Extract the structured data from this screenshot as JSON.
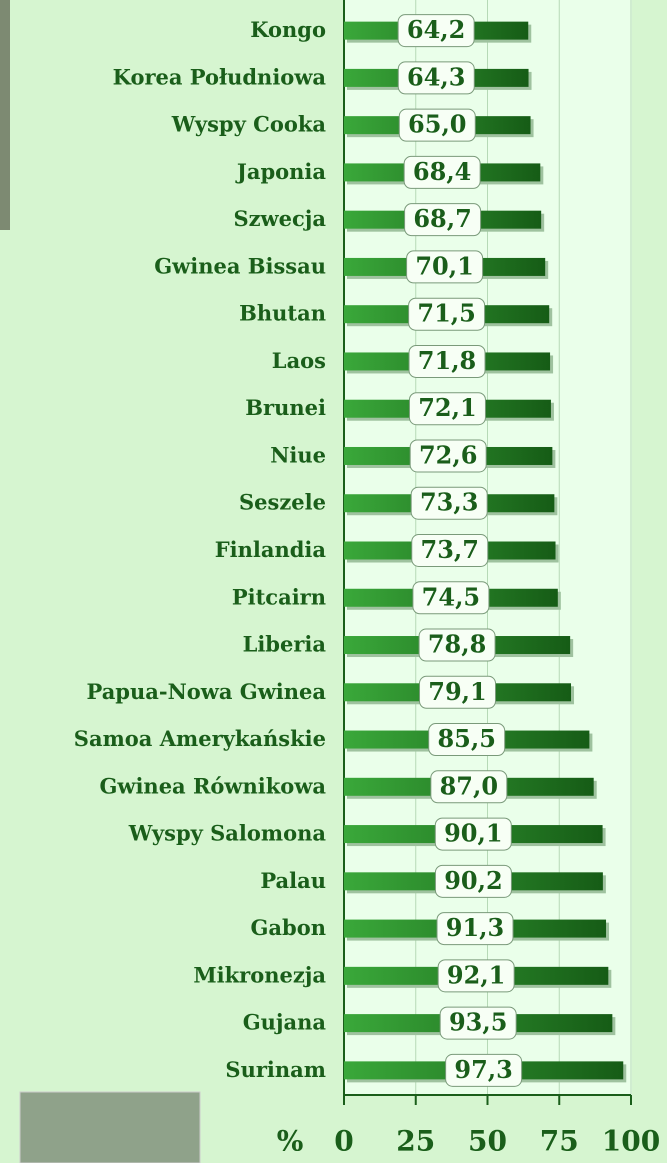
{
  "chart_data": {
    "type": "bar",
    "orientation": "horizontal",
    "categories": [
      "Kongo",
      "Korea Południowa",
      "Wyspy Cooka",
      "Japonia",
      "Szwecja",
      "Gwinea Bissau",
      "Bhutan",
      "Laos",
      "Brunei",
      "Niue",
      "Seszele",
      "Finlandia",
      "Pitcairn",
      "Liberia",
      "Papua-Nowa Gwinea",
      "Samoa Amerykańskie",
      "Gwinea Równikowa",
      "Wyspy Salomona",
      "Palau",
      "Gabon",
      "Mikronezja",
      "Gujana",
      "Surinam"
    ],
    "values": [
      64.2,
      64.3,
      65.0,
      68.4,
      68.7,
      70.1,
      71.5,
      71.8,
      72.1,
      72.6,
      73.3,
      73.7,
      74.5,
      78.8,
      79.1,
      85.5,
      87.0,
      90.1,
      90.2,
      91.3,
      92.1,
      93.5,
      97.3
    ],
    "value_labels": [
      "64,2",
      "64,3",
      "65,0",
      "68,4",
      "68,7",
      "70,1",
      "71,5",
      "71,8",
      "72,1",
      "72,6",
      "73,3",
      "73,7",
      "74,5",
      "78,8",
      "79,1",
      "85,5",
      "87,0",
      "90,1",
      "90,2",
      "91,3",
      "92,1",
      "93,5",
      "97,3"
    ],
    "color": "#2b8f2b",
    "x_label": "%",
    "xlim": [
      0,
      100
    ],
    "xticks": [
      0,
      25,
      50,
      75,
      100
    ],
    "grid": true
  }
}
